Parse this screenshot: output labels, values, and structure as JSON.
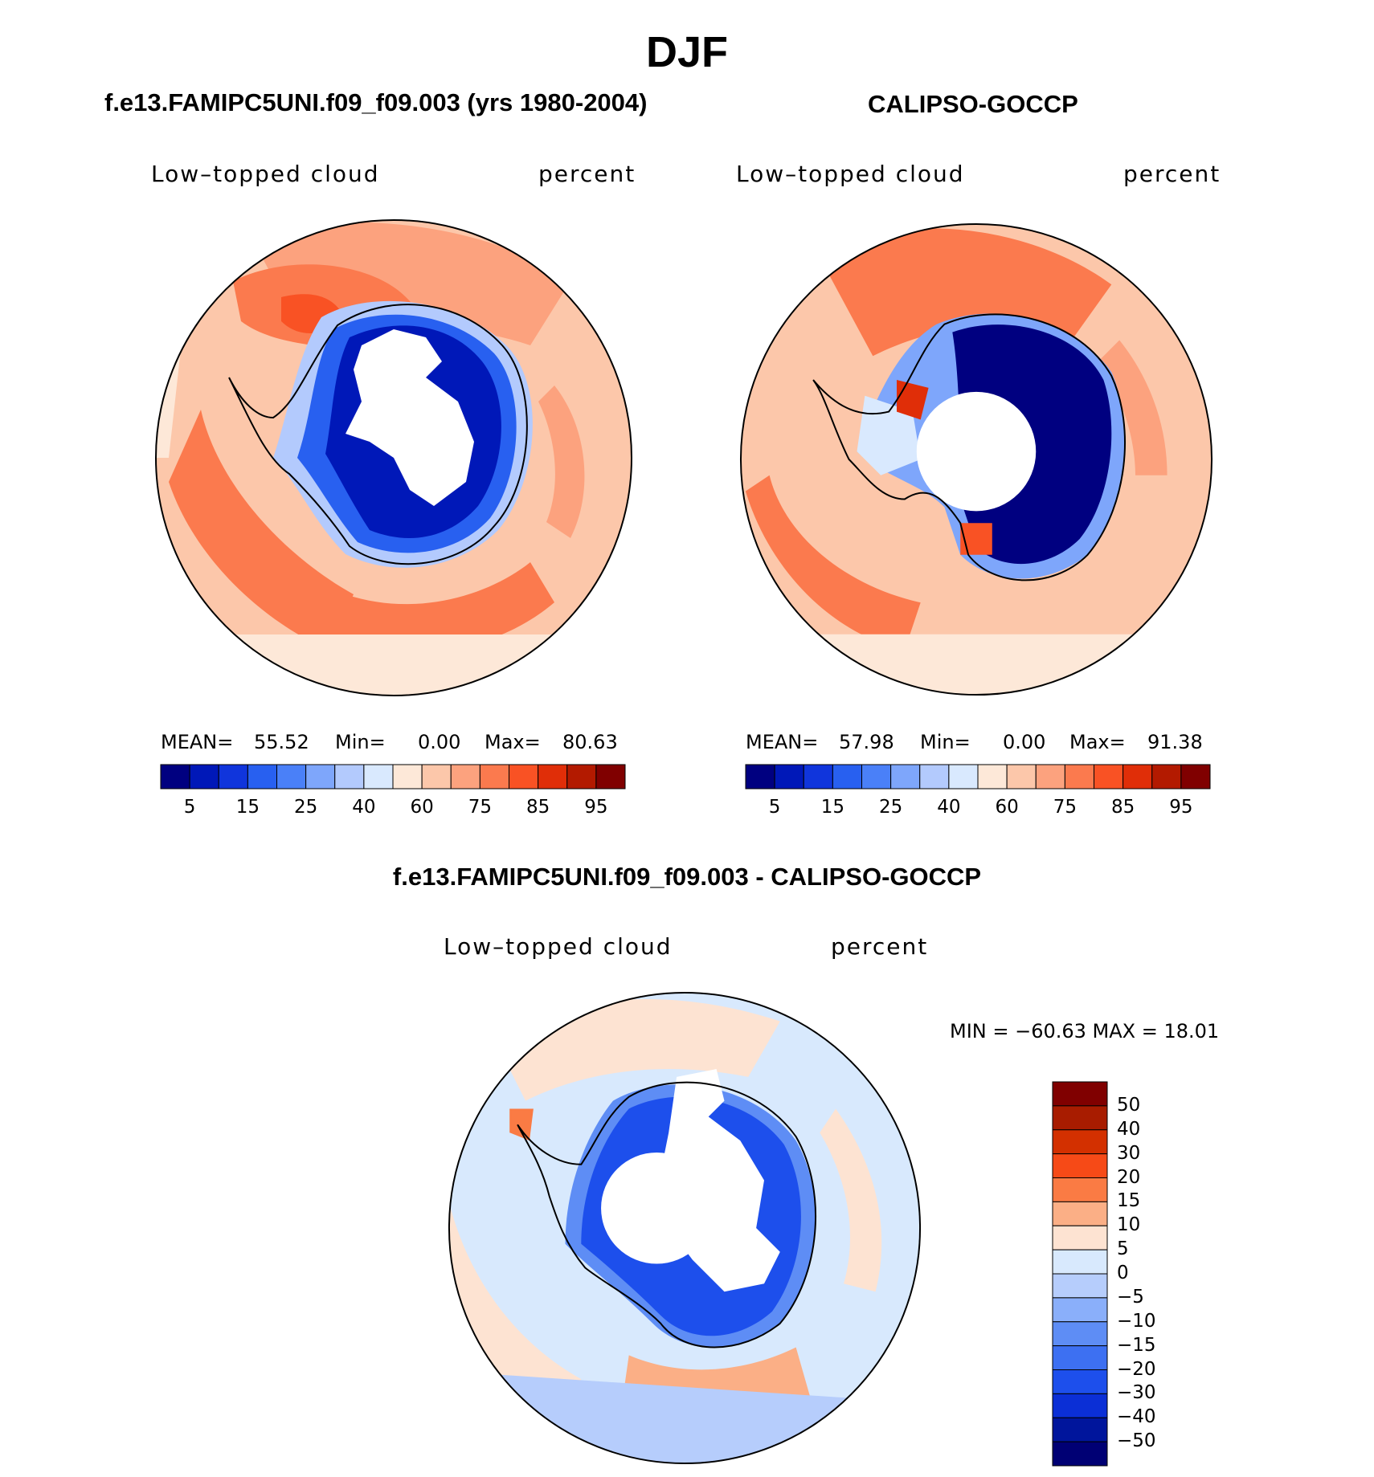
{
  "figure": {
    "title": "DJF",
    "colors": {
      "coastline": "#000000",
      "seq": [
        "#000080",
        "#0018b8",
        "#1035dc",
        "#2860f0",
        "#4a80f8",
        "#7ea6fb",
        "#b3cafd",
        "#d9e9fe",
        "#fde8d8",
        "#fcc7aa",
        "#fca27e",
        "#fb7a4e",
        "#f95224",
        "#e02e08",
        "#b31a00",
        "#800000"
      ],
      "div": [
        "#800000",
        "#a81c00",
        "#d33000",
        "#f64a17",
        "#fa7b44",
        "#fbaf86",
        "#fde3d2",
        "#d8e9fd",
        "#b6cdfc",
        "#8aaffa",
        "#5e8df5",
        "#3d70f2",
        "#1d4fec",
        "#0b2fd6",
        "#00159c",
        "#000074"
      ]
    },
    "panels": [
      {
        "title": "f.e13.FAMIPC5UNI.f09_f09.003 (yrs 1980-2004)",
        "variable": "Low–topped cloud",
        "units": "percent",
        "mean_label": "MEAN=",
        "mean": "55.52",
        "min_label": "Min=",
        "min": "0.00",
        "max_label": "Max=",
        "max": "80.63",
        "colorbar_ticks": [
          "5",
          "15",
          "25",
          "40",
          "60",
          "75",
          "85",
          "95"
        ]
      },
      {
        "title": "CALIPSO-GOCCP",
        "variable": "Low–topped cloud",
        "units": "percent",
        "mean_label": "MEAN=",
        "mean": "57.98",
        "min_label": "Min=",
        "min": "0.00",
        "max_label": "Max=",
        "max": "91.38",
        "colorbar_ticks": [
          "5",
          "15",
          "25",
          "40",
          "60",
          "75",
          "85",
          "95"
        ]
      }
    ],
    "difference": {
      "title": "f.e13.FAMIPC5UNI.f09_f09.003 - CALIPSO-GOCCP",
      "variable": "Low–topped cloud",
      "units": "percent",
      "minmax": "MIN = −60.63 MAX =   18.01",
      "colorbar_ticks": [
        "50",
        "40",
        "30",
        "20",
        "15",
        "10",
        "5",
        "0",
        "−5",
        "−10",
        "−15",
        "−20",
        "−30",
        "−40",
        "−50"
      ]
    }
  }
}
